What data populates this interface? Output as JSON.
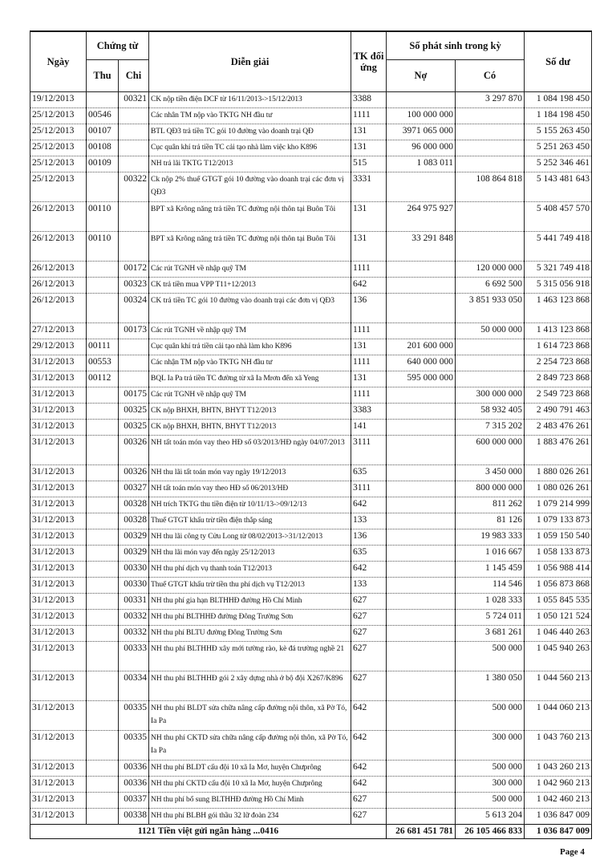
{
  "headers": {
    "date": "Ngày",
    "voucher": "Chứng từ",
    "receipt": "Thu",
    "payment": "Chi",
    "description": "Diễn giải",
    "account": "TK đối ứng",
    "movement": "Số phát sinh trong kỳ",
    "debit": "Nợ",
    "credit": "Có",
    "balance": "Số dư"
  },
  "rows": [
    {
      "date": "19/12/2013",
      "thu": "",
      "chi": "00321",
      "desc": "CK nộp tiền điện DCF từ 16/11/2013->15/12/2013",
      "tk": "3388",
      "no": "",
      "co": "3 297 870",
      "du": "1 084 198 450",
      "lines": 1
    },
    {
      "date": "25/12/2013",
      "thu": "00546",
      "chi": "",
      "desc": "Các nhân TM nộp vào TKTG NH đầu tư",
      "tk": "1111",
      "no": "100 000 000",
      "co": "",
      "du": "1 184 198 450",
      "lines": 1
    },
    {
      "date": "25/12/2013",
      "thu": "00107",
      "chi": "",
      "desc": "BTL QĐ3 trả tiền TC gói 10 đường vào doanh trại QĐ",
      "tk": "131",
      "no": "3971 065 000",
      "co": "",
      "du": "5 155 263 450",
      "lines": 1
    },
    {
      "date": "25/12/2013",
      "thu": "00108",
      "chi": "",
      "desc": "Cục quân khí trả tiền TC cải tạo nhà làm việc kho K896",
      "tk": "131",
      "no": "96 000 000",
      "co": "",
      "du": "5 251 263 450",
      "lines": 1
    },
    {
      "date": "25/12/2013",
      "thu": "00109",
      "chi": "",
      "desc": "NH trả lãi TKTG T12/2013",
      "tk": "515",
      "no": "1 083 011",
      "co": "",
      "du": "5 252 346 461",
      "lines": 1
    },
    {
      "date": "25/12/2013",
      "thu": "",
      "chi": "00322",
      "desc": "Ck nộp 2% thuế GTGT gói 10 đường vào doanh trại các đơn vị QĐ3",
      "tk": "3331",
      "no": "",
      "co": "108 864 818",
      "du": "5 143 481 643",
      "lines": 2
    },
    {
      "date": "26/12/2013",
      "thu": "00110",
      "chi": "",
      "desc": "BPT xã Krông năng trả tiền TC đường nội thôn tại Buôn Tôi",
      "tk": "131",
      "no": "264 975 927",
      "co": "",
      "du": "5 408 457 570",
      "lines": 2
    },
    {
      "date": "26/12/2013",
      "thu": "00110",
      "chi": "",
      "desc": "BPT xã Krông năng trả tiền TC đường nội thôn tại Buôn Tôi",
      "tk": "131",
      "no": "33 291 848",
      "co": "",
      "du": "5 441 749 418",
      "lines": 2
    },
    {
      "date": "26/12/2013",
      "thu": "",
      "chi": "00172",
      "desc": "Các rút TGNH về nhập quỹ TM",
      "tk": "1111",
      "no": "",
      "co": "120 000 000",
      "du": "5 321 749 418",
      "lines": 1
    },
    {
      "date": "26/12/2013",
      "thu": "",
      "chi": "00323",
      "desc": "CK trả tiền mua VPP T11+12/2013",
      "tk": "642",
      "no": "",
      "co": "6 692 500",
      "du": "5 315 056 918",
      "lines": 1
    },
    {
      "date": "26/12/2013",
      "thu": "",
      "chi": "00324",
      "desc": "CK trả tiền TC gói 10 đường vào doanh trại các đơn vị QĐ3",
      "tk": "136",
      "no": "",
      "co": "3 851 933 050",
      "du": "1 463 123 868",
      "lines": 2
    },
    {
      "date": "27/12/2013",
      "thu": "",
      "chi": "00173",
      "desc": "Các rút TGNH về nhập quỹ TM",
      "tk": "1111",
      "no": "",
      "co": "50 000 000",
      "du": "1 413 123 868",
      "lines": 1
    },
    {
      "date": "29/12/2013",
      "thu": "00111",
      "chi": "",
      "desc": "Cục quân khí trả tiền cải tạo nhà làm kho K896",
      "tk": "131",
      "no": "201 600 000",
      "co": "",
      "du": "1 614 723 868",
      "lines": 1
    },
    {
      "date": "31/12/2013",
      "thu": "00553",
      "chi": "",
      "desc": "Các nhận TM nộp vào TKTG NH đầu tư",
      "tk": "1111",
      "no": "640 000 000",
      "co": "",
      "du": "2 254 723 868",
      "lines": 1
    },
    {
      "date": "31/12/2013",
      "thu": "00112",
      "chi": "",
      "desc": "BQL Ia Pa trả tiền TC đường từ xã Ia Mrơn đến xã Yeng",
      "tk": "131",
      "no": "595 000 000",
      "co": "",
      "du": "2 849 723 868",
      "lines": 1
    },
    {
      "date": "31/12/2013",
      "thu": "",
      "chi": "00175",
      "desc": "Các rút TGNH về nhập quỹ TM",
      "tk": "1111",
      "no": "",
      "co": "300 000 000",
      "du": "2 549 723 868",
      "lines": 1
    },
    {
      "date": "31/12/2013",
      "thu": "",
      "chi": "00325",
      "desc": "CK nộp BHXH, BHTN, BHYT T12/2013",
      "tk": "3383",
      "no": "",
      "co": "58 932 405",
      "du": "2 490 791 463",
      "lines": 1
    },
    {
      "date": "31/12/2013",
      "thu": "",
      "chi": "00325",
      "desc": "CK nộp BHXH, BHTN, BHYT T12/2013",
      "tk": "141",
      "no": "",
      "co": "7 315 202",
      "du": "2 483 476 261",
      "lines": 1
    },
    {
      "date": "31/12/2013",
      "thu": "",
      "chi": "00326",
      "desc": "NH tất toán món vay theo HĐ số 03/2013/HĐ ngày 04/07/2013",
      "tk": "3111",
      "no": "",
      "co": "600 000 000",
      "du": "1 883 476 261",
      "lines": 2
    },
    {
      "date": "31/12/2013",
      "thu": "",
      "chi": "00326",
      "desc": "NH thu lãi tất toán món vay ngày 19/12/2013",
      "tk": "635",
      "no": "",
      "co": "3 450 000",
      "du": "1 880 026 261",
      "lines": 1
    },
    {
      "date": "31/12/2013",
      "thu": "",
      "chi": "00327",
      "desc": "NH tất toán món vay theo HĐ số 06/2013/HĐ",
      "tk": "3111",
      "no": "",
      "co": "800 000 000",
      "du": "1 080 026 261",
      "lines": 1
    },
    {
      "date": "31/12/2013",
      "thu": "",
      "chi": "00328",
      "desc": "NH trích TKTG thu tiền điện từ 10/11/13->09/12/13",
      "tk": "642",
      "no": "",
      "co": "811 262",
      "du": "1 079 214 999",
      "lines": 1
    },
    {
      "date": "31/12/2013",
      "thu": "",
      "chi": "00328",
      "desc": "Thuế GTGT khấu trừ tiền điện thắp sáng",
      "tk": "133",
      "no": "",
      "co": "81 126",
      "du": "1 079 133 873",
      "lines": 1
    },
    {
      "date": "31/12/2013",
      "thu": "",
      "chi": "00329",
      "desc": "NH thu lãi công ty Cửu Long từ 08/02/2013->31/12/2013",
      "tk": "136",
      "no": "",
      "co": "19 983 333",
      "du": "1 059 150 540",
      "lines": 1
    },
    {
      "date": "31/12/2013",
      "thu": "",
      "chi": "00329",
      "desc": "NH thu lãi món vay đến ngày 25/12/2013",
      "tk": "635",
      "no": "",
      "co": "1 016 667",
      "du": "1 058 133 873",
      "lines": 1
    },
    {
      "date": "31/12/2013",
      "thu": "",
      "chi": "00330",
      "desc": "NH thu phí dịch vụ thanh toán T12/2013",
      "tk": "642",
      "no": "",
      "co": "1 145 459",
      "du": "1 056 988 414",
      "lines": 1
    },
    {
      "date": "31/12/2013",
      "thu": "",
      "chi": "00330",
      "desc": "Thuế GTGT khấu trừ tiền thu phí dịch vụ T12/2013",
      "tk": "133",
      "no": "",
      "co": "114 546",
      "du": "1 056 873 868",
      "lines": 1
    },
    {
      "date": "31/12/2013",
      "thu": "",
      "chi": "00331",
      "desc": "NH thu phí gia hạn BLTHHĐ đường Hồ Chí Minh",
      "tk": "627",
      "no": "",
      "co": "1 028 333",
      "du": "1 055 845 535",
      "lines": 1
    },
    {
      "date": "31/12/2013",
      "thu": "",
      "chi": "00332",
      "desc": "NH thu phí BLTHHĐ đường Đông Trường Sơn",
      "tk": "627",
      "no": "",
      "co": "5 724 011",
      "du": "1 050 121 524",
      "lines": 1
    },
    {
      "date": "31/12/2013",
      "thu": "",
      "chi": "00332",
      "desc": "NH thu phí BLTU đường Đông Trường Sơn",
      "tk": "627",
      "no": "",
      "co": "3 681 261",
      "du": "1 046 440 263",
      "lines": 1
    },
    {
      "date": "31/12/2013",
      "thu": "",
      "chi": "00333",
      "desc": "NH thu phí BLTHHĐ xây mới tường rào, kè đá trường nghề 21",
      "tk": "627",
      "no": "",
      "co": "500 000",
      "du": "1 045 940 263",
      "lines": 2
    },
    {
      "date": "31/12/2013",
      "thu": "",
      "chi": "00334",
      "desc": "NH thu phí BLTHHĐ gói 2 xây dựng nhà ở bộ đội X267/K896",
      "tk": "627",
      "no": "",
      "co": "1 380 050",
      "du": "1 044 560 213",
      "lines": 2
    },
    {
      "date": "31/12/2013",
      "thu": "",
      "chi": "00335",
      "desc": "NH thu phí BLDT sửa chữa nâng cấp đường nội thôn, xã Pờ Tó, Ia Pa",
      "tk": "642",
      "no": "",
      "co": "500 000",
      "du": "1 044 060 213",
      "lines": 2
    },
    {
      "date": "31/12/2013",
      "thu": "",
      "chi": "00335",
      "desc": "NH thu phí CKTD sửa chữa nâng cấp đường nội thôn, xã Pờ Tó, Ia Pa",
      "tk": "642",
      "no": "",
      "co": "300 000",
      "du": "1 043 760 213",
      "lines": 2
    },
    {
      "date": "31/12/2013",
      "thu": "",
      "chi": "00336",
      "desc": "NH thu phí BLDT cấu đội 10 xã Ia Mơ, huyện Chưprông",
      "tk": "642",
      "no": "",
      "co": "500 000",
      "du": "1 043 260 213",
      "lines": 1
    },
    {
      "date": "31/12/2013",
      "thu": "",
      "chi": "00336",
      "desc": "NH thu phí CKTD cấu đội 10 xã Ia Mơ, huyện Chưprông",
      "tk": "642",
      "no": "",
      "co": "300 000",
      "du": "1 042 960 213",
      "lines": 1
    },
    {
      "date": "31/12/2013",
      "thu": "",
      "chi": "00337",
      "desc": "NH thu phí bổ sung BLTHHĐ đường Hồ Chí Minh",
      "tk": "627",
      "no": "",
      "co": "500 000",
      "du": "1 042 460 213",
      "lines": 1
    },
    {
      "date": "31/12/2013",
      "thu": "",
      "chi": "00338",
      "desc": "NH thu phí BLBH gói thầu 32 lữ đoàn 234",
      "tk": "627",
      "no": "",
      "co": "5 613 204",
      "du": "1 036 847 009",
      "lines": 1
    }
  ],
  "total": {
    "label": "1121   Tiền việt gửi ngân hàng ...0416",
    "no": "26 681 451 781",
    "co": "26 105 466 833",
    "du": "1 036 847 009"
  },
  "footer": {
    "page": "Page 4"
  }
}
